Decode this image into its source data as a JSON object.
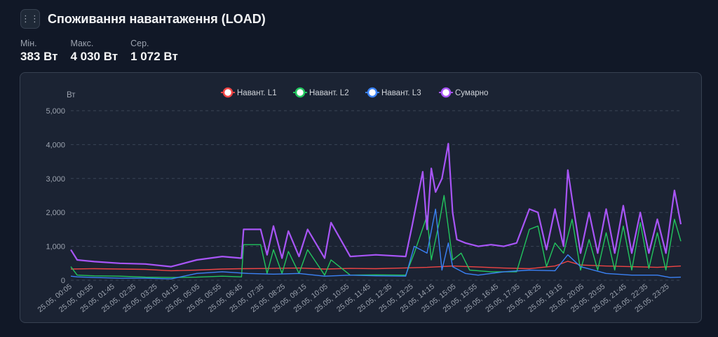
{
  "header": {
    "drag_icon": "⋮⋮",
    "title": "Споживання навантаження (LOAD)"
  },
  "stats": [
    {
      "label": "Мін.",
      "value": "383 Вт"
    },
    {
      "label": "Макс.",
      "value": "4 030 Вт"
    },
    {
      "label": "Сер.",
      "value": "1 072 Вт"
    }
  ],
  "chart_data": {
    "type": "line",
    "ylabel": "Вт",
    "ylim": [
      0,
      5000
    ],
    "yticks": [
      0,
      1000,
      2000,
      3000,
      4000,
      5000
    ],
    "ytick_labels": [
      "0",
      "1,000",
      "2,000",
      "3,000",
      "4,000",
      "5,000"
    ],
    "grid": "horizontal dashed",
    "legend_position": "top-center",
    "x_start": "25.05, 00:05",
    "x_end": "25.05, 23:55",
    "x_tick_labels": [
      "25.05, 00:05",
      "25.05, 00:55",
      "25.05, 01:45",
      "25.05, 02:35",
      "25.05, 03:25",
      "25.05, 04:15",
      "25.05, 05:05",
      "25.05, 05:55",
      "25.05, 06:45",
      "25.05, 07:35",
      "25.05, 08:25",
      "25.05, 09:15",
      "25.05, 10:05",
      "25.05, 10:55",
      "25.05, 11:45",
      "25.05, 12:35",
      "25.05, 13:25",
      "25.05, 14:15",
      "25.05, 15:05",
      "25.05, 15:55",
      "25.05, 16:45",
      "25.05, 17:35",
      "25.05, 18:25",
      "25.05, 19:15",
      "25.05, 20:05",
      "25.05, 20:55",
      "25.05, 21:45",
      "25.05, 22:35",
      "25.05, 23:25"
    ],
    "series": [
      {
        "name": "Навант. L1",
        "color": "#ef4444",
        "x": [
          "00:05",
          "01:00",
          "02:00",
          "03:00",
          "04:00",
          "05:00",
          "06:00",
          "06:45",
          "08:00",
          "09:00",
          "10:00",
          "11:00",
          "12:00",
          "13:00",
          "14:00",
          "15:00",
          "16:00",
          "17:00",
          "18:00",
          "19:00",
          "19:30",
          "20:00",
          "21:00",
          "22:00",
          "23:00",
          "23:55"
        ],
        "y": [
          330,
          340,
          330,
          320,
          280,
          300,
          330,
          340,
          350,
          360,
          330,
          350,
          340,
          360,
          380,
          420,
          390,
          360,
          340,
          420,
          560,
          450,
          420,
          400,
          380,
          420
        ]
      },
      {
        "name": "Навант. L2",
        "color": "#22c55e",
        "x": [
          "00:05",
          "00:20",
          "01:00",
          "02:00",
          "03:00",
          "04:00",
          "05:00",
          "06:00",
          "06:45",
          "06:50",
          "07:30",
          "07:45",
          "08:00",
          "08:20",
          "08:35",
          "09:00",
          "09:20",
          "10:00",
          "10:15",
          "11:00",
          "12:00",
          "13:10",
          "13:30",
          "14:00",
          "14:10",
          "14:30",
          "14:40",
          "15:00",
          "15:20",
          "15:40",
          "16:30",
          "17:30",
          "18:00",
          "18:20",
          "18:40",
          "19:00",
          "19:20",
          "19:40",
          "20:00",
          "20:20",
          "20:40",
          "21:00",
          "21:20",
          "21:40",
          "22:00",
          "22:20",
          "22:40",
          "23:00",
          "23:20",
          "23:40",
          "23:55"
        ],
        "y": [
          400,
          150,
          130,
          120,
          90,
          80,
          90,
          120,
          100,
          1050,
          1050,
          200,
          900,
          200,
          850,
          200,
          900,
          150,
          600,
          150,
          160,
          150,
          800,
          1900,
          600,
          1800,
          2500,
          600,
          800,
          300,
          250,
          250,
          1500,
          1600,
          400,
          1100,
          800,
          1800,
          300,
          1200,
          300,
          1400,
          300,
          1600,
          300,
          1700,
          350,
          1400,
          300,
          1800,
          1150
        ]
      },
      {
        "name": "Навант. L3",
        "color": "#3b82f6",
        "x": [
          "00:05",
          "00:20",
          "01:00",
          "02:00",
          "03:00",
          "04:00",
          "05:00",
          "06:00",
          "07:00",
          "08:00",
          "09:00",
          "10:00",
          "11:00",
          "12:00",
          "13:10",
          "13:30",
          "14:00",
          "14:20",
          "14:35",
          "14:50",
          "15:00",
          "15:30",
          "16:00",
          "17:00",
          "18:00",
          "19:00",
          "19:30",
          "20:00",
          "21:00",
          "22:00",
          "23:00",
          "23:30",
          "23:55"
        ],
        "y": [
          120,
          100,
          80,
          60,
          60,
          40,
          200,
          250,
          200,
          180,
          200,
          120,
          150,
          130,
          120,
          1000,
          800,
          2100,
          300,
          1100,
          400,
          200,
          150,
          250,
          300,
          280,
          750,
          400,
          200,
          150,
          150,
          80,
          90
        ]
      },
      {
        "name": "Сумарно",
        "color": "#a855f7",
        "x": [
          "00:05",
          "00:20",
          "01:00",
          "02:00",
          "03:00",
          "04:00",
          "05:00",
          "06:00",
          "06:45",
          "06:50",
          "07:30",
          "07:45",
          "08:00",
          "08:20",
          "08:35",
          "09:00",
          "09:20",
          "10:00",
          "10:15",
          "11:00",
          "12:00",
          "13:10",
          "13:25",
          "13:50",
          "14:00",
          "14:10",
          "14:20",
          "14:35",
          "14:50",
          "15:00",
          "15:10",
          "15:30",
          "16:00",
          "16:30",
          "17:00",
          "17:30",
          "18:00",
          "18:20",
          "18:40",
          "19:00",
          "19:20",
          "19:30",
          "19:40",
          "20:00",
          "20:20",
          "20:40",
          "21:00",
          "21:20",
          "21:40",
          "22:00",
          "22:20",
          "22:40",
          "23:00",
          "23:20",
          "23:40",
          "23:55"
        ],
        "y": [
          900,
          600,
          550,
          500,
          480,
          400,
          600,
          700,
          650,
          1500,
          1500,
          750,
          1600,
          650,
          1450,
          700,
          1500,
          650,
          1700,
          700,
          750,
          700,
          1600,
          3200,
          1500,
          3300,
          2600,
          3000,
          4030,
          2000,
          1200,
          1100,
          1000,
          1050,
          1000,
          1100,
          2100,
          2000,
          900,
          2100,
          1000,
          3250,
          2400,
          800,
          2000,
          800,
          2100,
          800,
          2200,
          800,
          2000,
          800,
          1800,
          800,
          2650,
          1650
        ]
      }
    ]
  }
}
